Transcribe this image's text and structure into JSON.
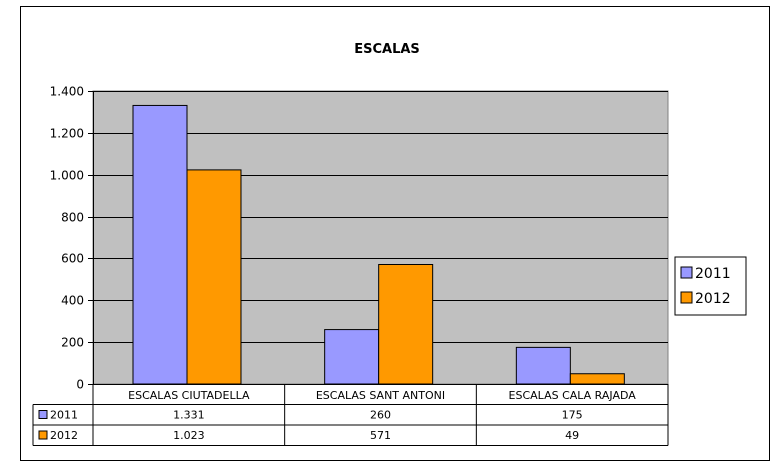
{
  "chart_data": {
    "type": "bar",
    "title": "ESCALAS",
    "categories": [
      "ESCALAS  CIUTADELLA",
      "ESCALAS  SANT ANTONI",
      "ESCALAS  CALA RAJADA"
    ],
    "series": [
      {
        "name": "2011",
        "values": [
          1331,
          260,
          175
        ],
        "labels": [
          "1.331",
          "260",
          "175"
        ],
        "color": "#9999ff"
      },
      {
        "name": "2012",
        "values": [
          1023,
          571,
          49
        ],
        "labels": [
          "1.023",
          "571",
          "49"
        ],
        "color": "#ff9900"
      }
    ],
    "ylim": [
      0,
      1400
    ],
    "yticks": [
      0,
      200,
      400,
      600,
      800,
      1000,
      1200,
      1400
    ],
    "ytick_labels": [
      "0",
      "200",
      "400",
      "600",
      "800",
      "1.000",
      "1.200",
      "1.400"
    ],
    "grid": true,
    "plot_background": "#c0c0c0",
    "legend_position": "right",
    "data_table": true
  }
}
